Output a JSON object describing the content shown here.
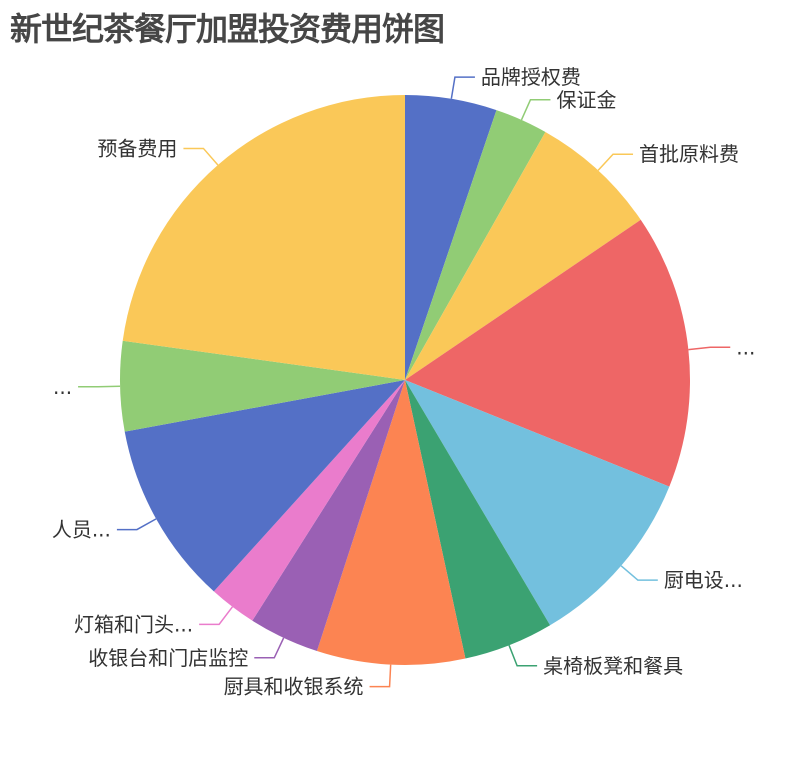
{
  "chart_data": {
    "type": "pie",
    "title": "新世纪茶餐厅加盟投资费用饼图",
    "unit": "percent",
    "start_angle": "top, clockwise",
    "legend": "none",
    "slices": [
      {
        "label": "品牌授权费",
        "value": 5.2,
        "color": "#5470c6"
      },
      {
        "label": "保证金",
        "value": 3.0,
        "color": "#91cc75"
      },
      {
        "label": "首批原料费",
        "value": 7.3,
        "color": "#fac858"
      },
      {
        "label": "...",
        "value": 15.6,
        "color": "#ee6666"
      },
      {
        "label": "厨电设...",
        "value": 10.4,
        "color": "#73c0de"
      },
      {
        "label": "桌椅板凳和餐具",
        "value": 5.1,
        "color": "#3ba272"
      },
      {
        "label": "厨具和收银系统",
        "value": 8.4,
        "color": "#fc8452"
      },
      {
        "label": "收银台和门店监控",
        "value": 4.0,
        "color": "#9a60b4"
      },
      {
        "label": "灯箱和门头...",
        "value": 2.7,
        "color": "#ea7ccc"
      },
      {
        "label": "人员...",
        "value": 10.4,
        "color": "#5470c6"
      },
      {
        "label": "...",
        "value": 5.1,
        "color": "#91cc75"
      },
      {
        "label": "预备费用",
        "value": 22.8,
        "color": "#fac858"
      }
    ]
  }
}
